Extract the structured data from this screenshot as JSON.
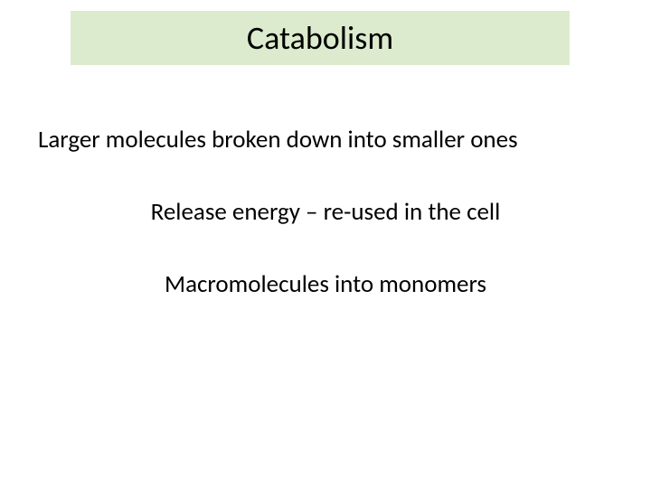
{
  "slide": {
    "title": "Catabolism",
    "line1": "Larger molecules broken down into smaller ones",
    "line2": "Release energy – re-used in the cell",
    "line3": "Macromolecules into monomers",
    "title_bg_color": "#dcebcd",
    "text_color": "#000000",
    "background_color": "#ffffff",
    "title_fontsize": 36,
    "body_fontsize": 27
  }
}
